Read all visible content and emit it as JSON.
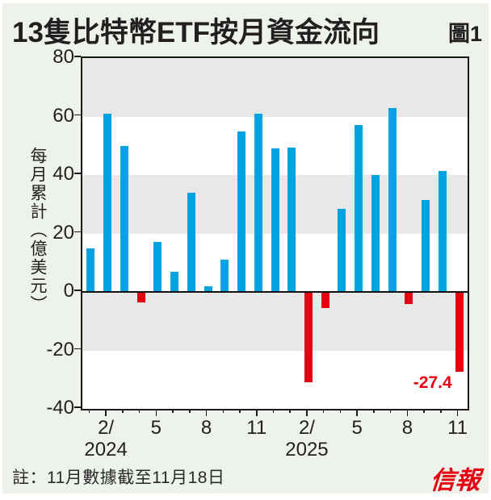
{
  "page": {
    "title": "13隻比特幣ETF按月資金流向",
    "figure_label": "圖1",
    "note": "註：11月數據截至11月18日",
    "logo": "信報"
  },
  "colors": {
    "background": "#edf3ea",
    "positive_bar": "#00a2e2",
    "negative_bar": "#e60012",
    "shaded_band": "#e8e8e8",
    "axis": "#1a1a1a",
    "text": "#231f20",
    "annotation": "#e60012",
    "logo": "#e60012"
  },
  "chart_data": {
    "type": "bar",
    "title": "13隻比特幣ETF按月資金流向",
    "xlabel": "",
    "ylabel": "每月累計（億美元）",
    "ylim": [
      -40,
      80
    ],
    "yticks": [
      80,
      60,
      40,
      20,
      0,
      -20,
      -40
    ],
    "grid": "off",
    "legend": "none",
    "shaded_bands": [
      [
        80,
        60
      ],
      [
        40,
        20
      ],
      [
        0,
        -20
      ]
    ],
    "categories": [
      "2024-01",
      "2024-02",
      "2024-03",
      "2024-04",
      "2024-05",
      "2024-06",
      "2024-07",
      "2024-08",
      "2024-09",
      "2024-10",
      "2024-11",
      "2024-12",
      "2025-01",
      "2025-02",
      "2025-03",
      "2025-04",
      "2025-05",
      "2025-06",
      "2025-07",
      "2025-08",
      "2025-09",
      "2025-10",
      "2025-11"
    ],
    "values": [
      15,
      61,
      50,
      -3.5,
      17,
      7,
      34,
      2,
      11,
      55,
      61,
      49,
      49.5,
      -31,
      -5.5,
      28.5,
      57,
      40,
      63,
      -4,
      31.5,
      41.5,
      -27.4
    ],
    "x_major_ticks": [
      {
        "index": 1,
        "label": "2/"
      },
      {
        "index": 4,
        "label": "5"
      },
      {
        "index": 7,
        "label": "8"
      },
      {
        "index": 10,
        "label": "11"
      },
      {
        "index": 13,
        "label": "2/"
      },
      {
        "index": 16,
        "label": "5"
      },
      {
        "index": 19,
        "label": "8"
      },
      {
        "index": 22,
        "label": "11"
      }
    ],
    "x_year_labels": [
      {
        "index": 1,
        "label": "2024"
      },
      {
        "index": 13,
        "label": "2025"
      }
    ],
    "annotations": [
      {
        "text": "-27.4",
        "month_index": 22
      }
    ]
  }
}
